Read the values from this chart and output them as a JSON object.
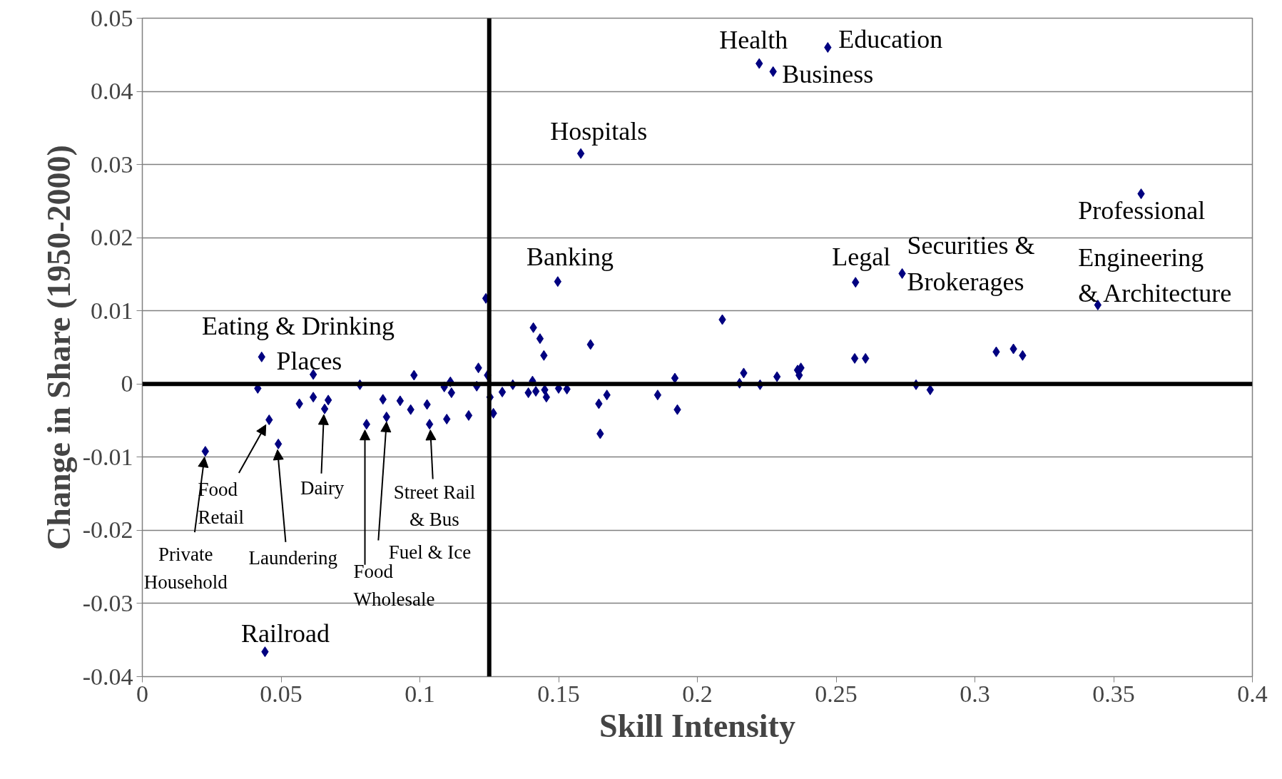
{
  "chart_data": {
    "type": "scatter",
    "xlabel": "Skill Intensity",
    "ylabel": "Change in Share (1950-2000)",
    "xlim": [
      0,
      0.4
    ],
    "ylim": [
      -0.04,
      0.05
    ],
    "xticks": [
      0,
      0.05,
      0.1,
      0.15,
      0.2,
      0.25,
      0.3,
      0.35,
      0.4
    ],
    "yticks": [
      -0.04,
      -0.03,
      -0.02,
      -0.01,
      0,
      0.01,
      0.02,
      0.03,
      0.04,
      0.05
    ],
    "grid": "y",
    "marker": "diamond",
    "x": [
      0.0442,
      0.0227,
      0.0416,
      0.043,
      0.0457,
      0.049,
      0.0566,
      0.0616,
      0.0616,
      0.0657,
      0.067,
      0.0784,
      0.0808,
      0.0867,
      0.088,
      0.0929,
      0.0979,
      0.0967,
      0.1026,
      0.1035,
      0.1088,
      0.111,
      0.1114,
      0.1097,
      0.1176,
      0.1211,
      0.1205,
      0.1238,
      0.1244,
      0.1253,
      0.1265,
      0.1297,
      0.1335,
      0.1391,
      0.1409,
      0.1406,
      0.1418,
      0.1433,
      0.1447,
      0.145,
      0.1456,
      0.1497,
      0.15,
      0.153,
      0.158,
      0.1615,
      0.1645,
      0.165,
      0.1674,
      0.1857,
      0.1919,
      0.1928,
      0.209,
      0.2152,
      0.2167,
      0.2226,
      0.2287,
      0.2361,
      0.2373,
      0.2367,
      0.2223,
      0.2273,
      0.247,
      0.257,
      0.2567,
      0.2606,
      0.2738,
      0.2788,
      0.2839,
      0.3077,
      0.3139,
      0.3172,
      0.3443,
      0.3599
    ],
    "series": [
      {
        "color": "#000080",
        "values": [
          -0.0366,
          -0.0092,
          -0.0006,
          0.0037,
          -0.0049,
          -0.0082,
          -0.0027,
          0.0013,
          -0.0018,
          -0.0034,
          -0.0022,
          -0.0001,
          -0.0055,
          -0.0021,
          -0.0045,
          -0.0023,
          0.0012,
          -0.0035,
          -0.0028,
          -0.0055,
          -0.0004,
          0.0003,
          -0.0012,
          -0.0048,
          -0.0043,
          0.0022,
          -0.0003,
          0.0117,
          0.0012,
          -0.0018,
          -0.004,
          -0.0011,
          -0.0001,
          -0.0012,
          0.0077,
          0.0004,
          -0.001,
          0.0062,
          0.0039,
          -0.0008,
          -0.0018,
          0.014,
          -0.0006,
          -0.0007,
          0.0315,
          0.0054,
          -0.0027,
          -0.0068,
          -0.0015,
          -0.0015,
          0.0008,
          -0.0035,
          0.0088,
          0.0001,
          0.0015,
          -0.0001,
          0.001,
          0.0019,
          0.0022,
          0.0012,
          0.0438,
          0.0427,
          0.046,
          0.0139,
          0.0035,
          0.0035,
          0.0151,
          -0.0001,
          -0.0008,
          0.0044,
          0.0048,
          0.0039,
          0.0108,
          0.026
        ]
      }
    ],
    "ref_lines": [
      {
        "axis": "x",
        "value": 0.125,
        "color": "#000000"
      },
      {
        "axis": "y",
        "value": 0,
        "color": "#000000"
      }
    ],
    "annotations": [
      {
        "text": "Health",
        "x": 0.2223,
        "y": 0.0438
      },
      {
        "text": "Education",
        "x": 0.247,
        "y": 0.046
      },
      {
        "text": "Business",
        "x": 0.2273,
        "y": 0.0427
      },
      {
        "text": "Hospitals",
        "x": 0.158,
        "y": 0.0315
      },
      {
        "text": "Banking",
        "x": 0.1497,
        "y": 0.014
      },
      {
        "text": "Legal",
        "x": 0.257,
        "y": 0.0139
      },
      {
        "text": "Securities &\nBrokerages",
        "x": 0.2738,
        "y": 0.0151
      },
      {
        "text": "Professional",
        "x": 0.3599,
        "y": 0.026
      },
      {
        "text": "Engineering\n& Architecture",
        "x": 0.3443,
        "y": 0.0108
      },
      {
        "text": "Eating & Drinking\nPlaces",
        "x": 0.043,
        "y": 0.0037
      },
      {
        "text": "Railroad",
        "x": 0.0442,
        "y": -0.0366
      },
      {
        "text": "Private\nHousehold",
        "x": 0.0227,
        "y": -0.0092
      },
      {
        "text": "Food\nRetail",
        "x": 0.0457,
        "y": -0.0049
      },
      {
        "text": "Laundering",
        "x": 0.049,
        "y": -0.0082
      },
      {
        "text": "Dairy",
        "x": 0.0657,
        "y": -0.0034
      },
      {
        "text": "Food\nWholesale",
        "x": 0.0808,
        "y": -0.0055
      },
      {
        "text": "Fuel & Ice",
        "x": 0.088,
        "y": -0.0045
      },
      {
        "text": "Street Rail\n& Bus",
        "x": 0.1035,
        "y": -0.0055
      }
    ]
  }
}
